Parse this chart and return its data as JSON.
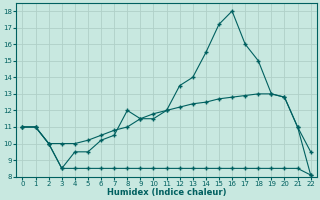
{
  "xlabel": "Humidex (Indice chaleur)",
  "background_color": "#c8e8e0",
  "grid_color": "#b0d0c8",
  "line_color": "#006060",
  "xlim": [
    -0.5,
    22.5
  ],
  "ylim": [
    8,
    18.5
  ],
  "yticks": [
    8,
    9,
    10,
    11,
    12,
    13,
    14,
    15,
    16,
    17,
    18
  ],
  "xticks": [
    0,
    1,
    2,
    3,
    4,
    5,
    6,
    7,
    8,
    9,
    10,
    11,
    12,
    13,
    14,
    15,
    16,
    17,
    18,
    19,
    20,
    21,
    22
  ],
  "line1_x": [
    0,
    1,
    2,
    3,
    4,
    5,
    6,
    7,
    8,
    9,
    10,
    11,
    12,
    13,
    14,
    15,
    16,
    17,
    18,
    19,
    20,
    21,
    22
  ],
  "line1_y": [
    11,
    11,
    10,
    8.5,
    9.5,
    9.5,
    10.2,
    10.5,
    12,
    11.5,
    11.5,
    12,
    13.5,
    14.0,
    15.5,
    17.2,
    18,
    16,
    15,
    13,
    12.8,
    11,
    9.5
  ],
  "line2_x": [
    0,
    1,
    2,
    3,
    4,
    5,
    6,
    7,
    8,
    9,
    10,
    11,
    12,
    13,
    14,
    15,
    16,
    17,
    18,
    19,
    20,
    21,
    22
  ],
  "line2_y": [
    11,
    11,
    10,
    10,
    10,
    10.2,
    10.5,
    10.8,
    11,
    11.5,
    11.8,
    12,
    12.2,
    12.4,
    12.5,
    12.7,
    12.8,
    12.9,
    13,
    13,
    12.8,
    11,
    8.1
  ],
  "line3_x": [
    0,
    1,
    2,
    3,
    4,
    5,
    6,
    7,
    8,
    9,
    10,
    11,
    12,
    13,
    14,
    15,
    16,
    17,
    18,
    19,
    20,
    21,
    22
  ],
  "line3_y": [
    11,
    11,
    10,
    8.5,
    8.5,
    8.5,
    8.5,
    8.5,
    8.5,
    8.5,
    8.5,
    8.5,
    8.5,
    8.5,
    8.5,
    8.5,
    8.5,
    8.5,
    8.5,
    8.5,
    8.5,
    8.5,
    8.1
  ]
}
